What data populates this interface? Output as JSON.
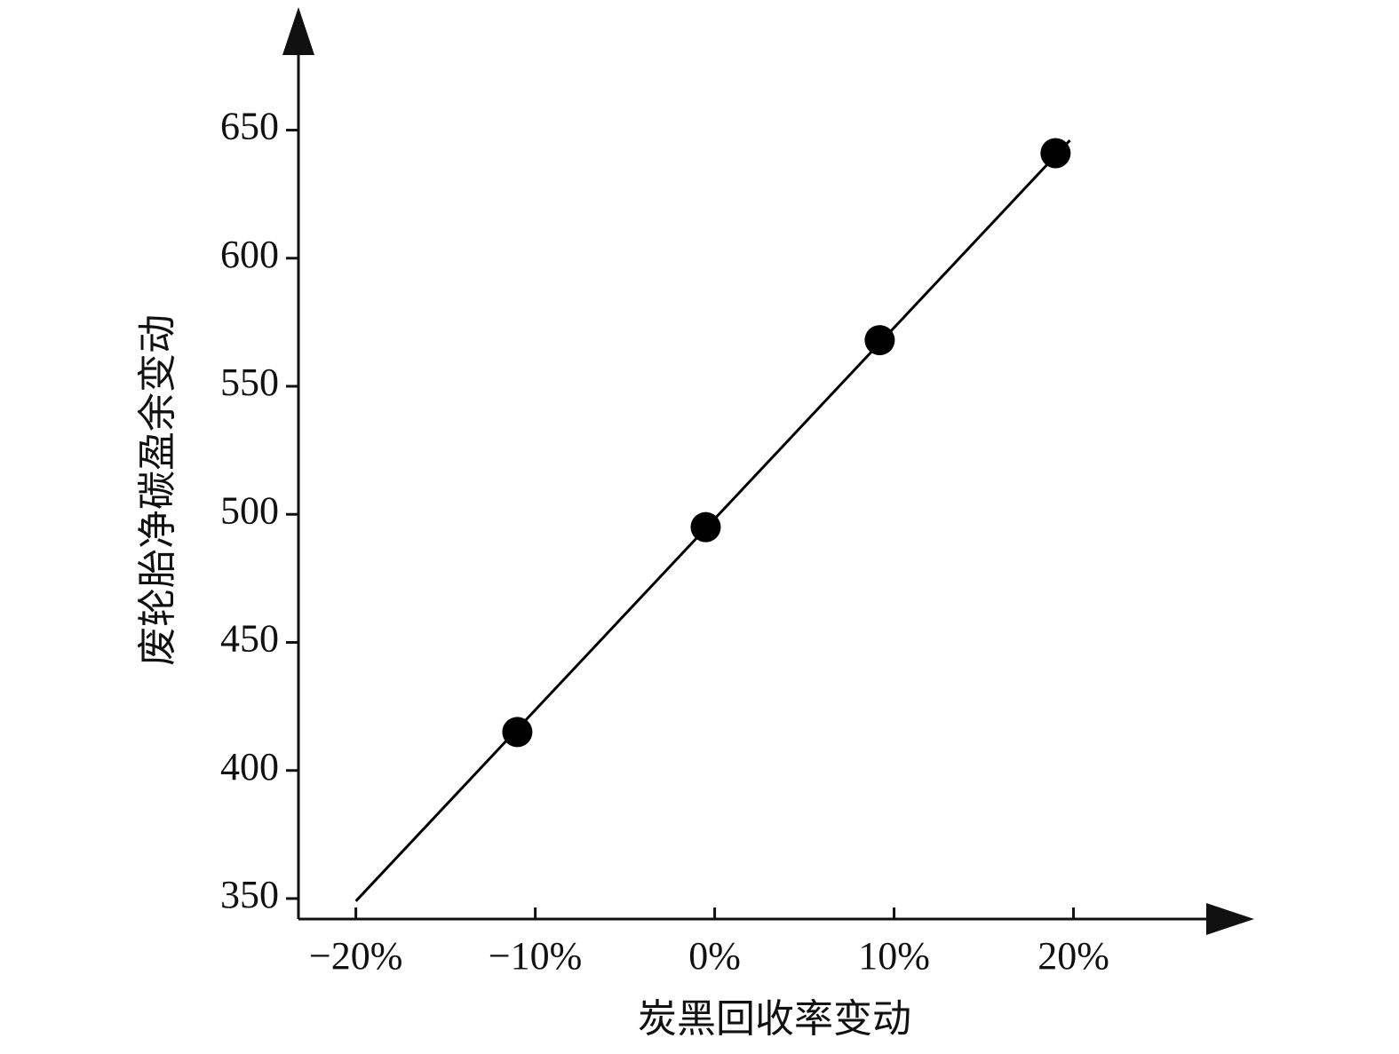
{
  "chart_data": {
    "type": "scatter",
    "xlabel": "炭黑回收率变动",
    "ylabel": "废轮胎净碳盈余变动",
    "x": [
      -11,
      -0.5,
      9.2,
      19.0
    ],
    "values": [
      415,
      495,
      568,
      641
    ],
    "color": "#000000",
    "trend": {
      "x": [
        -20,
        19.8
      ],
      "values": [
        349,
        646
      ]
    },
    "xlim": [
      -23.2,
      27.4
    ],
    "ylim": [
      342,
      680
    ],
    "xticks": [
      {
        "value": -20,
        "label": "−20%"
      },
      {
        "value": -10,
        "label": "−10%"
      },
      {
        "value": 0,
        "label": "0%"
      },
      {
        "value": 10,
        "label": "10%"
      },
      {
        "value": 20,
        "label": "20%"
      }
    ],
    "yticks": [
      350,
      400,
      450,
      500,
      550,
      600,
      650
    ],
    "grid": false
  }
}
